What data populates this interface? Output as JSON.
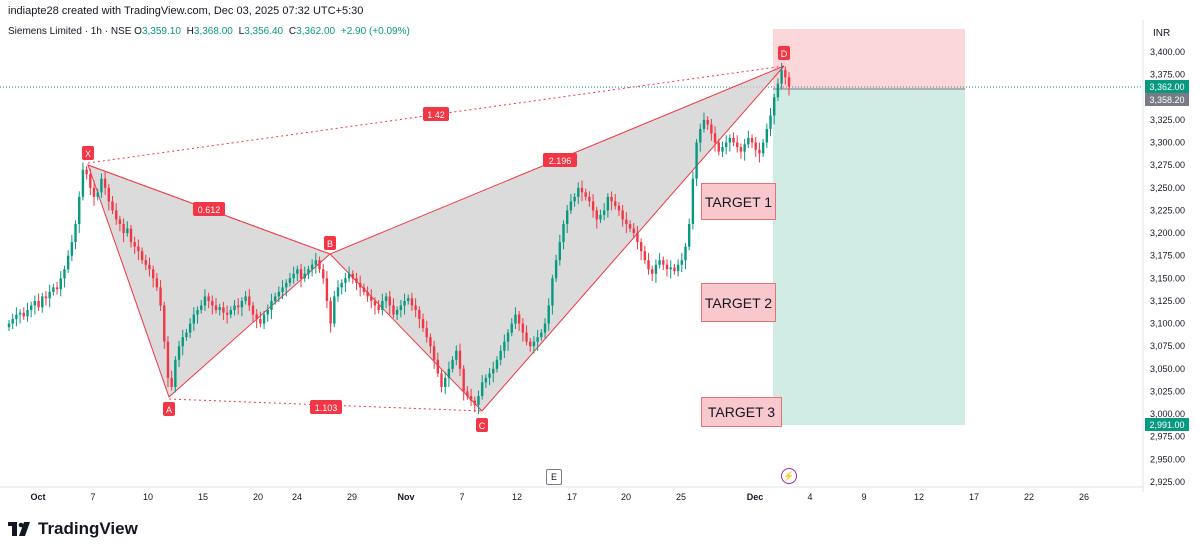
{
  "header": {
    "credit": "indiapte28 created with TradingView.com, Dec 03, 2025 07:32 UTC+5:30",
    "symbol": "Siemens Limited · 1h · NSE",
    "o_label": "O",
    "o_value": "3,359.10",
    "h_label": "H",
    "h_value": "3,368.00",
    "l_label": "L",
    "l_value": "3,356.40",
    "c_label": "C",
    "c_value": "3,362.00",
    "change": "+2.90 (+0.09%)",
    "currency": "INR"
  },
  "price_scale": {
    "current_price": "3,362.00",
    "entry_price": "3,358.20",
    "target_price": "2,991.00"
  },
  "targets": [
    "TARGET 1",
    "TARGET 2",
    "TARGET 3"
  ],
  "events": {
    "earnings": "E",
    "flash": "⚡"
  },
  "brand": {
    "name": "TradingView"
  },
  "colors": {
    "up": "#089981",
    "down": "#f23645",
    "pattern": "#f23645",
    "profit_zone": "#d1ece5",
    "loss_zone": "#fbd7d9"
  },
  "chart_data": {
    "type": "candlestick",
    "y_ticks": [
      "3,400.00",
      "3,375.00",
      "3,350.00",
      "3,325.00",
      "3,300.00",
      "3,275.00",
      "3,250.00",
      "3,225.00",
      "3,200.00",
      "3,175.00",
      "3,150.00",
      "3,125.00",
      "3,100.00",
      "3,075.00",
      "3,050.00",
      "3,025.00",
      "3,000.00",
      "2,975.00",
      "2,950.00",
      "2,925.00"
    ],
    "x_ticks": [
      "Oct",
      "7",
      "10",
      "15",
      "20",
      "24",
      "29",
      "Nov",
      "7",
      "12",
      "17",
      "20",
      "25",
      "Dec",
      "4",
      "9",
      "12",
      "17",
      "22",
      "26"
    ],
    "ylim": [
      2925,
      3425
    ],
    "harmonic_points": [
      {
        "label": "X",
        "price": 3275
      },
      {
        "label": "A",
        "price": 3020
      },
      {
        "label": "B",
        "price": 3176
      },
      {
        "label": "C",
        "price": 3002
      },
      {
        "label": "D",
        "price": 3387
      }
    ],
    "ratios": [
      {
        "label": "0.612",
        "between": "XA-AB"
      },
      {
        "label": "1.103",
        "between": "AC"
      },
      {
        "label": "2.196",
        "between": "BD"
      },
      {
        "label": "1.42",
        "between": "XD"
      }
    ],
    "position": {
      "type": "short",
      "entry": 3358.2,
      "stop": 3418,
      "target": 2991.0
    },
    "candles_close": [
      3100,
      3105,
      3110,
      3112,
      3108,
      3115,
      3120,
      3125,
      3118,
      3130,
      3128,
      3135,
      3140,
      3138,
      3150,
      3160,
      3175,
      3190,
      3210,
      3240,
      3270,
      3265,
      3250,
      3240,
      3245,
      3260,
      3250,
      3235,
      3225,
      3215,
      3210,
      3200,
      3205,
      3190,
      3185,
      3180,
      3170,
      3165,
      3160,
      3150,
      3140,
      3120,
      3080,
      3040,
      3030,
      3060,
      3075,
      3085,
      3090,
      3100,
      3110,
      3115,
      3120,
      3130,
      3125,
      3120,
      3115,
      3118,
      3112,
      3110,
      3115,
      3120,
      3118,
      3125,
      3130,
      3120,
      3110,
      3105,
      3100,
      3110,
      3115,
      3125,
      3130,
      3135,
      3140,
      3145,
      3150,
      3155,
      3160,
      3150,
      3155,
      3160,
      3165,
      3170,
      3160,
      3150,
      3125,
      3100,
      3130,
      3140,
      3145,
      3150,
      3155,
      3150,
      3145,
      3140,
      3135,
      3130,
      3125,
      3120,
      3115,
      3125,
      3130,
      3120,
      3110,
      3115,
      3120,
      3125,
      3128,
      3120,
      3115,
      3105,
      3095,
      3085,
      3075,
      3060,
      3045,
      3030,
      3040,
      3050,
      3060,
      3070,
      3050,
      3025,
      3020,
      3015,
      3010,
      3020,
      3035,
      3040,
      3045,
      3050,
      3060,
      3070,
      3080,
      3090,
      3100,
      3110,
      3100,
      3090,
      3080,
      3075,
      3080,
      3085,
      3090,
      3100,
      3120,
      3150,
      3170,
      3190,
      3210,
      3225,
      3235,
      3240,
      3250,
      3245,
      3240,
      3235,
      3225,
      3215,
      3220,
      3225,
      3240,
      3235,
      3230,
      3225,
      3215,
      3210,
      3205,
      3200,
      3190,
      3180,
      3170,
      3160,
      3155,
      3165,
      3170,
      3165,
      3160,
      3162,
      3158,
      3165,
      3170,
      3185,
      3210,
      3260,
      3300,
      3315,
      3325,
      3320,
      3310,
      3300,
      3290,
      3295,
      3300,
      3305,
      3300,
      3295,
      3290,
      3298,
      3305,
      3300,
      3292,
      3288,
      3300,
      3315,
      3330,
      3350,
      3365,
      3380,
      3372,
      3362
    ]
  }
}
